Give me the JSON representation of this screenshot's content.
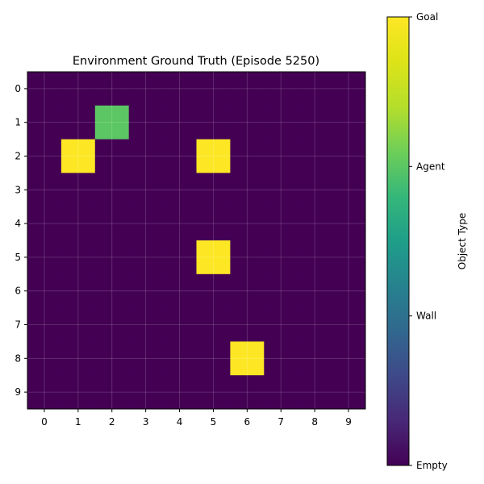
{
  "chart_data": {
    "type": "heatmap",
    "title": "Environment Ground Truth (Episode 5250)",
    "xlabel": "",
    "ylabel": "",
    "x_ticks": [
      "0",
      "1",
      "2",
      "3",
      "4",
      "5",
      "6",
      "7",
      "8",
      "9"
    ],
    "y_ticks": [
      "0",
      "1",
      "2",
      "3",
      "4",
      "5",
      "6",
      "7",
      "8",
      "9"
    ],
    "grid": true,
    "values": [
      [
        0,
        0,
        0,
        0,
        0,
        0,
        0,
        0,
        0,
        0
      ],
      [
        0,
        0,
        2,
        0,
        0,
        0,
        0,
        0,
        0,
        0
      ],
      [
        0,
        3,
        0,
        0,
        0,
        3,
        0,
        0,
        0,
        0
      ],
      [
        0,
        0,
        0,
        0,
        0,
        0,
        0,
        0,
        0,
        0
      ],
      [
        0,
        0,
        0,
        0,
        0,
        0,
        0,
        0,
        0,
        0
      ],
      [
        0,
        0,
        0,
        0,
        0,
        3,
        0,
        0,
        0,
        0
      ],
      [
        0,
        0,
        0,
        0,
        0,
        0,
        0,
        0,
        0,
        0
      ],
      [
        0,
        0,
        0,
        0,
        0,
        0,
        0,
        0,
        0,
        0
      ],
      [
        0,
        0,
        0,
        0,
        0,
        0,
        3,
        0,
        0,
        0
      ],
      [
        0,
        0,
        0,
        0,
        0,
        0,
        0,
        0,
        0,
        0
      ]
    ],
    "colormap": "viridis",
    "vmin": 0,
    "vmax": 3,
    "colorbar": {
      "label": "Object Type",
      "ticks": [
        {
          "value": 0,
          "label": "Empty"
        },
        {
          "value": 1,
          "label": "Wall"
        },
        {
          "value": 2,
          "label": "Agent"
        },
        {
          "value": 3,
          "label": "Goal"
        }
      ]
    },
    "colors": {
      "Empty": "#440154",
      "Agent": "#21918c",
      "Goal": "#fde725"
    }
  }
}
